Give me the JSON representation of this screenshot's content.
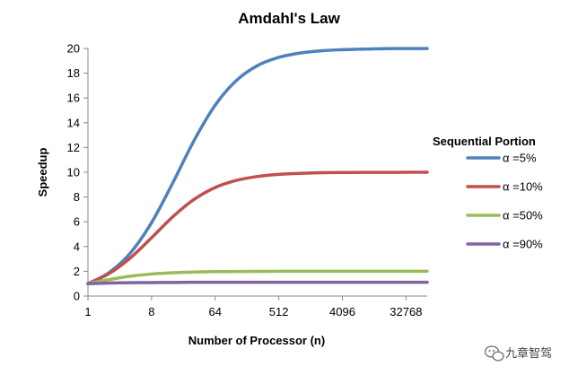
{
  "chart_data": {
    "type": "line",
    "title": "Amdahl's Law",
    "xlabel": "Number of Processor (n)",
    "ylabel": "Speedup",
    "x_scale": "log2",
    "xlim": [
      1,
      65536
    ],
    "ylim": [
      0,
      20
    ],
    "x_ticks": [
      1,
      8,
      64,
      512,
      4096,
      32768
    ],
    "x_tick_labels": [
      "1",
      "8",
      "64",
      "512",
      "4096",
      "32768"
    ],
    "y_ticks": [
      0,
      2,
      4,
      6,
      8,
      10,
      12,
      14,
      16,
      18,
      20
    ],
    "y_tick_labels": [
      "0",
      "2",
      "4",
      "6",
      "8",
      "10",
      "12",
      "14",
      "16",
      "18",
      "20"
    ],
    "grid": false,
    "legend_title": "Sequential Portion",
    "legend_position": "right",
    "x": [
      1,
      2,
      4,
      8,
      16,
      32,
      64,
      128,
      256,
      512,
      1024,
      2048,
      4096,
      8192,
      16384,
      32768,
      65536
    ],
    "series": [
      {
        "name": "α =5%",
        "color": "#4F81BD",
        "values": [
          1.0,
          1.9,
          3.48,
          5.93,
          9.14,
          12.55,
          15.42,
          17.41,
          18.62,
          19.28,
          19.63,
          19.81,
          19.9,
          19.95,
          19.98,
          19.99,
          19.99
        ]
      },
      {
        "name": "α =10%",
        "color": "#C0504D",
        "values": [
          1.0,
          1.82,
          3.08,
          4.71,
          6.4,
          7.8,
          8.77,
          9.34,
          9.66,
          9.83,
          9.91,
          9.96,
          9.98,
          9.99,
          9.99,
          10.0,
          10.0
        ]
      },
      {
        "name": "α =50%",
        "color": "#9BBB59",
        "values": [
          1.0,
          1.33,
          1.6,
          1.78,
          1.88,
          1.94,
          1.97,
          1.98,
          1.99,
          2.0,
          2.0,
          2.0,
          2.0,
          2.0,
          2.0,
          2.0,
          2.0
        ]
      },
      {
        "name": "α =90%",
        "color": "#8064A2",
        "values": [
          1.0,
          1.05,
          1.08,
          1.09,
          1.1,
          1.11,
          1.11,
          1.11,
          1.11,
          1.11,
          1.11,
          1.11,
          1.11,
          1.11,
          1.11,
          1.11,
          1.11
        ]
      }
    ]
  },
  "watermark": {
    "text": "九章智驾",
    "icon": "wechat-icon"
  }
}
